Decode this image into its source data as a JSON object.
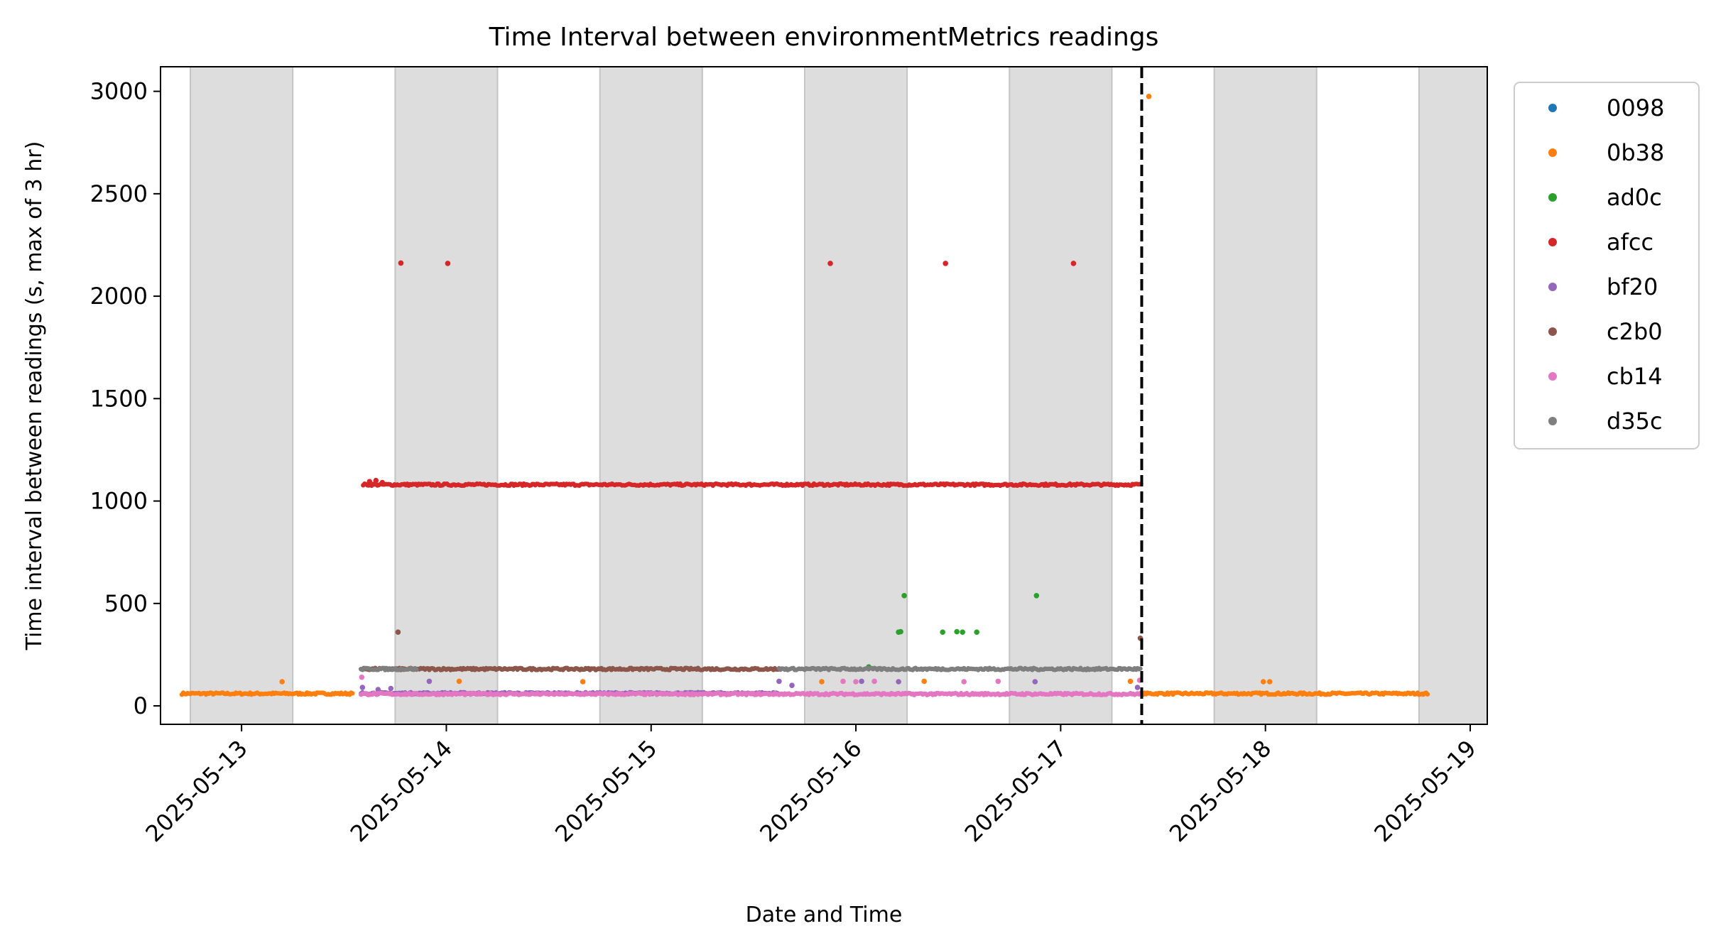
{
  "chart_data": {
    "type": "scatter",
    "title": "Time Interval between environmentMetrics readings",
    "xlabel": "Date and Time",
    "ylabel": "Time interval between readings (s, max of 3 hr)",
    "x_ticks": [
      "2025-05-13",
      "2025-05-14",
      "2025-05-15",
      "2025-05-16",
      "2025-05-17",
      "2025-05-18",
      "2025-05-19"
    ],
    "y_ticks": [
      0,
      500,
      1000,
      1500,
      2000,
      2500,
      3000
    ],
    "xlim": [
      "2025-05-12 14:30",
      "2025-05-19 02:00"
    ],
    "ylim": [
      -90,
      3120
    ],
    "legend_position": "outside-top-right",
    "shaded_night_bands": [
      [
        "2025-05-12 18:00",
        "2025-05-13 06:00"
      ],
      [
        "2025-05-13 18:00",
        "2025-05-14 06:00"
      ],
      [
        "2025-05-14 18:00",
        "2025-05-15 06:00"
      ],
      [
        "2025-05-15 18:00",
        "2025-05-16 06:00"
      ],
      [
        "2025-05-16 18:00",
        "2025-05-17 06:00"
      ],
      [
        "2025-05-17 18:00",
        "2025-05-18 06:00"
      ],
      [
        "2025-05-18 18:00",
        "2025-05-19 06:00"
      ]
    ],
    "vertical_marker": {
      "x": "2025-05-17 09:30",
      "style": "dashed",
      "color": "#000000"
    },
    "series": [
      {
        "name": "0098",
        "color": "#1f77b4",
        "baseline_segments": [],
        "points": []
      },
      {
        "name": "0b38",
        "color": "#ff7f0e",
        "baseline_segments": [
          {
            "x_start": "2025-05-12 17:00",
            "x_end": "2025-05-13 13:00",
            "y": 60
          },
          {
            "x_start": "2025-05-17 09:30",
            "x_end": "2025-05-18 19:00",
            "y": 60
          }
        ],
        "points": [
          {
            "x": "2025-05-13 04:45",
            "y": 118
          },
          {
            "x": "2025-05-14 01:30",
            "y": 120
          },
          {
            "x": "2025-05-14 16:00",
            "y": 118
          },
          {
            "x": "2025-05-15 20:00",
            "y": 118
          },
          {
            "x": "2025-05-16 08:00",
            "y": 120
          },
          {
            "x": "2025-05-17 08:10",
            "y": 120
          },
          {
            "x": "2025-05-17 10:20",
            "y": 2975
          },
          {
            "x": "2025-05-17 23:45",
            "y": 118
          },
          {
            "x": "2025-05-18 00:30",
            "y": 118
          }
        ]
      },
      {
        "name": "ad0c",
        "color": "#2ca02c",
        "baseline_segments": [],
        "points": [
          {
            "x": "2025-05-16 05:40",
            "y": 538
          },
          {
            "x": "2025-05-16 05:00",
            "y": 360
          },
          {
            "x": "2025-05-16 05:15",
            "y": 362
          },
          {
            "x": "2025-05-16 10:10",
            "y": 360
          },
          {
            "x": "2025-05-16 11:50",
            "y": 362
          },
          {
            "x": "2025-05-16 12:30",
            "y": 360
          },
          {
            "x": "2025-05-16 14:10",
            "y": 360
          },
          {
            "x": "2025-05-16 21:10",
            "y": 538
          },
          {
            "x": "2025-05-16 01:30",
            "y": 190
          }
        ]
      },
      {
        "name": "afcc",
        "color": "#d62728",
        "baseline_segments": [
          {
            "x_start": "2025-05-13 14:15",
            "x_end": "2025-05-17 09:25",
            "y": 1080
          }
        ],
        "points": [
          {
            "x": "2025-05-13 15:00",
            "y": 1095
          },
          {
            "x": "2025-05-13 15:45",
            "y": 1100
          },
          {
            "x": "2025-05-13 16:30",
            "y": 1090
          },
          {
            "x": "2025-05-13 18:40",
            "y": 2162
          },
          {
            "x": "2025-05-14 00:10",
            "y": 2160
          },
          {
            "x": "2025-05-15 21:00",
            "y": 2160
          },
          {
            "x": "2025-05-16 10:30",
            "y": 2160
          },
          {
            "x": "2025-05-17 01:30",
            "y": 2160
          }
        ]
      },
      {
        "name": "bf20",
        "color": "#9467bd",
        "baseline_segments": [
          {
            "x_start": "2025-05-13 14:00",
            "x_end": "2025-05-15 15:00",
            "y": 62
          }
        ],
        "points": [
          {
            "x": "2025-05-13 14:10",
            "y": 90
          },
          {
            "x": "2025-05-13 16:00",
            "y": 80
          },
          {
            "x": "2025-05-13 17:30",
            "y": 85
          },
          {
            "x": "2025-05-13 22:00",
            "y": 120
          },
          {
            "x": "2025-05-15 15:00",
            "y": 120
          },
          {
            "x": "2025-05-15 16:30",
            "y": 100
          },
          {
            "x": "2025-05-16 05:00",
            "y": 118
          },
          {
            "x": "2025-05-16 00:40",
            "y": 120
          },
          {
            "x": "2025-05-16 21:00",
            "y": 118
          },
          {
            "x": "2025-05-17 09:00",
            "y": 90
          }
        ]
      },
      {
        "name": "c2b0",
        "color": "#8c564b",
        "baseline_segments": [
          {
            "x_start": "2025-05-13 14:00",
            "x_end": "2025-05-15 15:00",
            "y": 180
          }
        ],
        "points": [
          {
            "x": "2025-05-13 18:20",
            "y": 360
          },
          {
            "x": "2025-05-17 09:20",
            "y": 330
          }
        ]
      },
      {
        "name": "cb14",
        "color": "#e377c2",
        "baseline_segments": [
          {
            "x_start": "2025-05-13 14:00",
            "x_end": "2025-05-17 09:25",
            "y": 58
          }
        ],
        "points": [
          {
            "x": "2025-05-13 14:05",
            "y": 140
          },
          {
            "x": "2025-05-15 22:30",
            "y": 120
          },
          {
            "x": "2025-05-16 00:00",
            "y": 118
          },
          {
            "x": "2025-05-16 02:10",
            "y": 120
          },
          {
            "x": "2025-05-16 12:40",
            "y": 118
          },
          {
            "x": "2025-05-16 16:40",
            "y": 120
          },
          {
            "x": "2025-05-17 09:15",
            "y": 125
          }
        ]
      },
      {
        "name": "d35c",
        "color": "#7f7f7f",
        "baseline_segments": [
          {
            "x_start": "2025-05-13 14:00",
            "x_end": "2025-05-13 20:30",
            "y": 180
          },
          {
            "x_start": "2025-05-15 15:00",
            "x_end": "2025-05-17 09:25",
            "y": 180
          }
        ],
        "points": []
      }
    ]
  }
}
